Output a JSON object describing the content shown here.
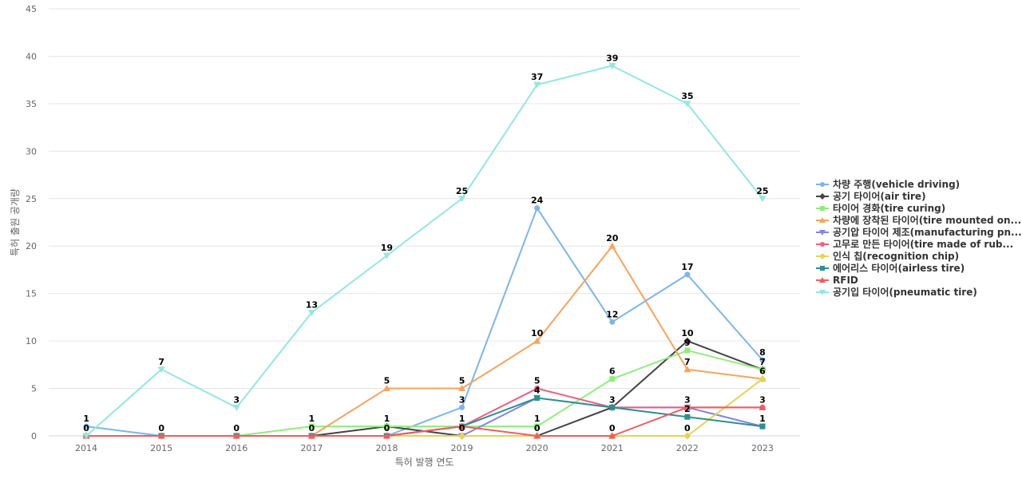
{
  "chart_data": {
    "type": "line",
    "title": "",
    "xlabel": "특허 발행 연도",
    "ylabel": "특허 출원 공개량",
    "ylim": [
      0,
      45
    ],
    "yticks": [
      0,
      5,
      10,
      15,
      20,
      25,
      30,
      35,
      40,
      45
    ],
    "categories": [
      "2014",
      "2015",
      "2016",
      "2017",
      "2018",
      "2019",
      "2020",
      "2021",
      "2022",
      "2023"
    ],
    "legend_position": "right",
    "series": [
      {
        "name": "차량 주행(vehicle driving)",
        "color": "#7cb5ec",
        "marker": "circle",
        "values": [
          1,
          0,
          0,
          0,
          0,
          3,
          24,
          12,
          17,
          8
        ]
      },
      {
        "name": "공기 타이어(air tire)",
        "color": "#434348",
        "marker": "diamond",
        "values": [
          0,
          0,
          0,
          0,
          1,
          0,
          0,
          3,
          10,
          7
        ]
      },
      {
        "name": "타이어 경화(tire curing)",
        "color": "#90ed7d",
        "marker": "square",
        "values": [
          0,
          0,
          0,
          1,
          1,
          1,
          1,
          6,
          9,
          7
        ]
      },
      {
        "name": "차량에 장착된 타이어(tire mounted on...",
        "color": "#f7a35c",
        "marker": "triangle",
        "values": [
          0,
          0,
          0,
          0,
          5,
          5,
          10,
          20,
          7,
          6
        ]
      },
      {
        "name": "공기압 타이어 제조(manufacturing pn...",
        "color": "#8085e9",
        "marker": "triangle-down",
        "values": [
          0,
          0,
          0,
          0,
          0,
          0,
          4,
          3,
          3,
          1
        ]
      },
      {
        "name": "고무로 만든 타이어(tire made of rub...",
        "color": "#f15c80",
        "marker": "circle",
        "values": [
          0,
          0,
          0,
          0,
          0,
          1,
          5,
          3,
          3,
          3
        ]
      },
      {
        "name": "인식 칩(recognition chip)",
        "color": "#e4d354",
        "marker": "diamond",
        "values": [
          0,
          0,
          0,
          0,
          0,
          0,
          0,
          0,
          0,
          6
        ]
      },
      {
        "name": "에어리스 타이어(airless tire)",
        "color": "#2b908f",
        "marker": "square",
        "values": [
          0,
          0,
          0,
          0,
          0,
          1,
          4,
          3,
          2,
          1
        ]
      },
      {
        "name": "RFID",
        "color": "#f45b5b",
        "marker": "triangle",
        "values": [
          0,
          0,
          0,
          0,
          0,
          1,
          0,
          0,
          3,
          3
        ]
      },
      {
        "name": "공기입 타이어(pneumatic tire)",
        "color": "#91e8e1",
        "marker": "triangle-down",
        "values": [
          0,
          7,
          3,
          13,
          19,
          25,
          37,
          39,
          35,
          25
        ]
      }
    ],
    "data_labels": [
      {
        "category": "2014",
        "value": 1,
        "text": "1"
      },
      {
        "category": "2014",
        "value": 0,
        "text": "0"
      },
      {
        "category": "2015",
        "value": 7,
        "text": "7"
      },
      {
        "category": "2015",
        "value": 0,
        "text": "0"
      },
      {
        "category": "2016",
        "value": 3,
        "text": "3"
      },
      {
        "category": "2016",
        "value": 0,
        "text": "0"
      },
      {
        "category": "2017",
        "value": 13,
        "text": "13"
      },
      {
        "category": "2017",
        "value": 1,
        "text": "1"
      },
      {
        "category": "2017",
        "value": 0,
        "text": "0"
      },
      {
        "category": "2018",
        "value": 19,
        "text": "19"
      },
      {
        "category": "2018",
        "value": 5,
        "text": "5"
      },
      {
        "category": "2018",
        "value": 1,
        "text": "1"
      },
      {
        "category": "2018",
        "value": 0,
        "text": "0"
      },
      {
        "category": "2019",
        "value": 25,
        "text": "25"
      },
      {
        "category": "2019",
        "value": 5,
        "text": "5"
      },
      {
        "category": "2019",
        "value": 3,
        "text": "3"
      },
      {
        "category": "2019",
        "value": 1,
        "text": "1"
      },
      {
        "category": "2019",
        "value": 0,
        "text": "0"
      },
      {
        "category": "2020",
        "value": 37,
        "text": "37"
      },
      {
        "category": "2020",
        "value": 24,
        "text": "24"
      },
      {
        "category": "2020",
        "value": 10,
        "text": "10"
      },
      {
        "category": "2020",
        "value": 5,
        "text": "5"
      },
      {
        "category": "2020",
        "value": 4,
        "text": "4"
      },
      {
        "category": "2020",
        "value": 1,
        "text": "1"
      },
      {
        "category": "2020",
        "value": 0,
        "text": "0"
      },
      {
        "category": "2021",
        "value": 39,
        "text": "39"
      },
      {
        "category": "2021",
        "value": 20,
        "text": "20"
      },
      {
        "category": "2021",
        "value": 12,
        "text": "12"
      },
      {
        "category": "2021",
        "value": 6,
        "text": "6"
      },
      {
        "category": "2021",
        "value": 3,
        "text": "3"
      },
      {
        "category": "2021",
        "value": 0,
        "text": "0"
      },
      {
        "category": "2022",
        "value": 35,
        "text": "35"
      },
      {
        "category": "2022",
        "value": 17,
        "text": "17"
      },
      {
        "category": "2022",
        "value": 10,
        "text": "10"
      },
      {
        "category": "2022",
        "value": 9,
        "text": "9"
      },
      {
        "category": "2022",
        "value": 7,
        "text": "7"
      },
      {
        "category": "2022",
        "value": 3,
        "text": "3"
      },
      {
        "category": "2022",
        "value": 2,
        "text": "2"
      },
      {
        "category": "2022",
        "value": 0,
        "text": "0"
      },
      {
        "category": "2023",
        "value": 25,
        "text": "25"
      },
      {
        "category": "2023",
        "value": 8,
        "text": "8"
      },
      {
        "category": "2023",
        "value": 7,
        "text": "7"
      },
      {
        "category": "2023",
        "value": 6,
        "text": "6"
      },
      {
        "category": "2023",
        "value": 3,
        "text": "3"
      },
      {
        "category": "2023",
        "value": 1,
        "text": "1"
      }
    ]
  }
}
